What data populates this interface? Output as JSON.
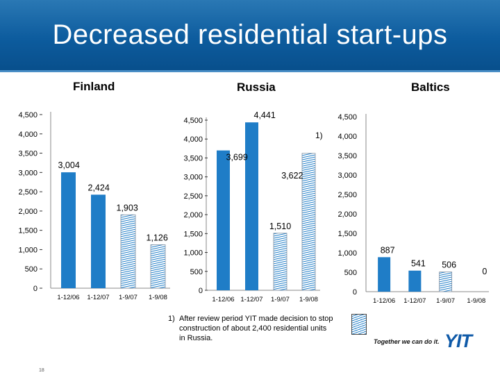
{
  "slide": {
    "title": "Decreased residential start-ups",
    "page_number": "18"
  },
  "footnote": {
    "number": "1)",
    "lines": [
      "After review period YIT made decision to stop",
      "construction of about 2,400 residential units",
      "in Russia."
    ]
  },
  "branding": {
    "slogan": "Together we can do it.",
    "logo": "YIT"
  },
  "colors": {
    "header_blue": "#0d5c9e",
    "bar_blue": "#1f7dc7"
  },
  "chart_data": [
    {
      "type": "bar",
      "title": "Finland",
      "categories": [
        "1-12/06",
        "1-12/07",
        "1-9/07",
        "1-9/08"
      ],
      "values": [
        3004,
        2424,
        1903,
        1126
      ],
      "value_labels": [
        "3,004",
        "2,424",
        "1,903",
        "1,126"
      ],
      "hatched": [
        false,
        false,
        true,
        true
      ],
      "ylim": [
        0,
        4500
      ],
      "yticks": [
        "0",
        "500",
        "1,000",
        "1,500",
        "2,000",
        "2,500",
        "3,000",
        "3,500",
        "4,000",
        "4,500"
      ]
    },
    {
      "type": "bar",
      "title": "Russia",
      "categories": [
        "1-12/06",
        "1-12/07",
        "1-9/07",
        "1-9/08"
      ],
      "values": [
        3699,
        4441,
        1510,
        3622
      ],
      "value_labels": [
        "3,699",
        "4,441",
        "1,510",
        "3,622"
      ],
      "hatched": [
        false,
        false,
        true,
        true
      ],
      "annotation": "1)",
      "ylim": [
        0,
        4500
      ],
      "yticks": [
        "0",
        "500",
        "1,000",
        "1,500",
        "2,000",
        "2,500",
        "3,000",
        "3,500",
        "4,000",
        "4,500"
      ]
    },
    {
      "type": "bar",
      "title": "Baltics",
      "categories": [
        "1-12/06",
        "1-12/07",
        "1-9/07",
        "1-9/08"
      ],
      "values": [
        887,
        541,
        506,
        0
      ],
      "value_labels": [
        "887",
        "541",
        "506",
        "0"
      ],
      "hatched": [
        false,
        false,
        true,
        true
      ],
      "ylim": [
        0,
        4500
      ],
      "yticks": [
        "0",
        "500",
        "1,000",
        "1,500",
        "2,000",
        "2,500",
        "3,000",
        "3,500",
        "4,000",
        "4,500"
      ]
    }
  ]
}
